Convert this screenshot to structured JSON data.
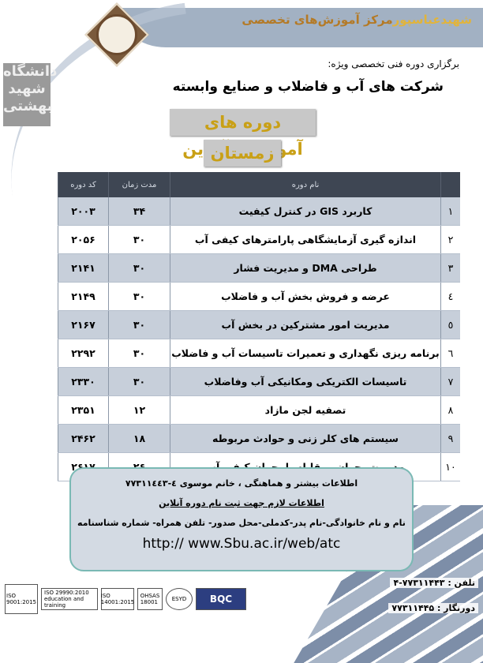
{
  "header": {
    "center_title_a": "مرکز آموزش‌های تخصصی",
    "center_title_b": "شهیدعباسپور",
    "subtitle": "برگزاری دوره فنی تخصصی ویژه:",
    "company": "شرکت های آب و فاضلاب و صنایع وابسته",
    "online_title": "دوره های آموزشی آنلاین",
    "season": "زمستان ۱۴۰۰",
    "university_logo": "دانشگاه شهید بهشتی"
  },
  "table": {
    "headers": {
      "num": "",
      "name": "نام دوره",
      "duration": "مدت زمان",
      "code": "کد دوره"
    },
    "rows": [
      {
        "num": "۱",
        "name": "کاربرد GIS در کنترل کیفیت",
        "duration": "۳۴",
        "code": "۲۰۰۳"
      },
      {
        "num": "۲",
        "name": "اندازه گیری آزمایشگاهی پارامترهای کیفی آب",
        "duration": "۳۰",
        "code": "۲۰۵۶"
      },
      {
        "num": "۳",
        "name": "طراحی DMA و مدیریت فشار",
        "duration": "۳۰",
        "code": "۲۱۴۱"
      },
      {
        "num": "٤",
        "name": "عرضه و فروش بخش آب و فاضلاب",
        "duration": "۳۰",
        "code": "۲۱۴۹"
      },
      {
        "num": "٥",
        "name": "مدیریت امور مشترکین در بخش آب",
        "duration": "۳۰",
        "code": "۲۱۶۷"
      },
      {
        "num": "٦",
        "name": "برنامه ریزی نگهداری و تعمیرات تاسیسات آب و فاضلاب",
        "duration": "۳۰",
        "code": "۲۲۹۲"
      },
      {
        "num": "۷",
        "name": "تاسیسات الکتریکی ومکانیکی آب وفاضلاب",
        "duration": "۳۰",
        "code": "۲۳۳۰"
      },
      {
        "num": "۸",
        "name": "تصفیه لجن مازاد",
        "duration": "۱۲",
        "code": "۲۳۵۱"
      },
      {
        "num": "۹",
        "name": "سیستم های کلر زنی و حوادث مربوطه",
        "duration": "۱۸",
        "code": "۲۴۶۲"
      },
      {
        "num": "۱۰",
        "name": "مدیریت بحران ومقابله با بحران کیفی آب",
        "duration": "۲۶",
        "code": "۲۶۱۷"
      }
    ]
  },
  "info": {
    "line1": "اطلاعات بیشتر و هماهنگی ، خانم موسوی     ٤-۷۷۳۱۱٤٤۳",
    "line2": "اطلاعات لازم جهت ثبت نام دوره آنلاین",
    "line3": "نام و نام خانوادگی-نام پدر-کدملی-محل صدور- تلفن همراه- شماره شناسنامه",
    "url": "http:// www.Sbu.ac.ir/web/atc"
  },
  "contact": {
    "tel": "تلفن :  ۷۷۳۱۱۴۴۳-۴",
    "fax": "دورنگار : ۷۷۳۱۱۴۴۵"
  },
  "certs": [
    "ISO 9001:2015",
    "ISO 29990:2010 education and training",
    "ISO 14001:2015",
    "OHSAS 18001",
    "ESYD",
    "BQC"
  ]
}
